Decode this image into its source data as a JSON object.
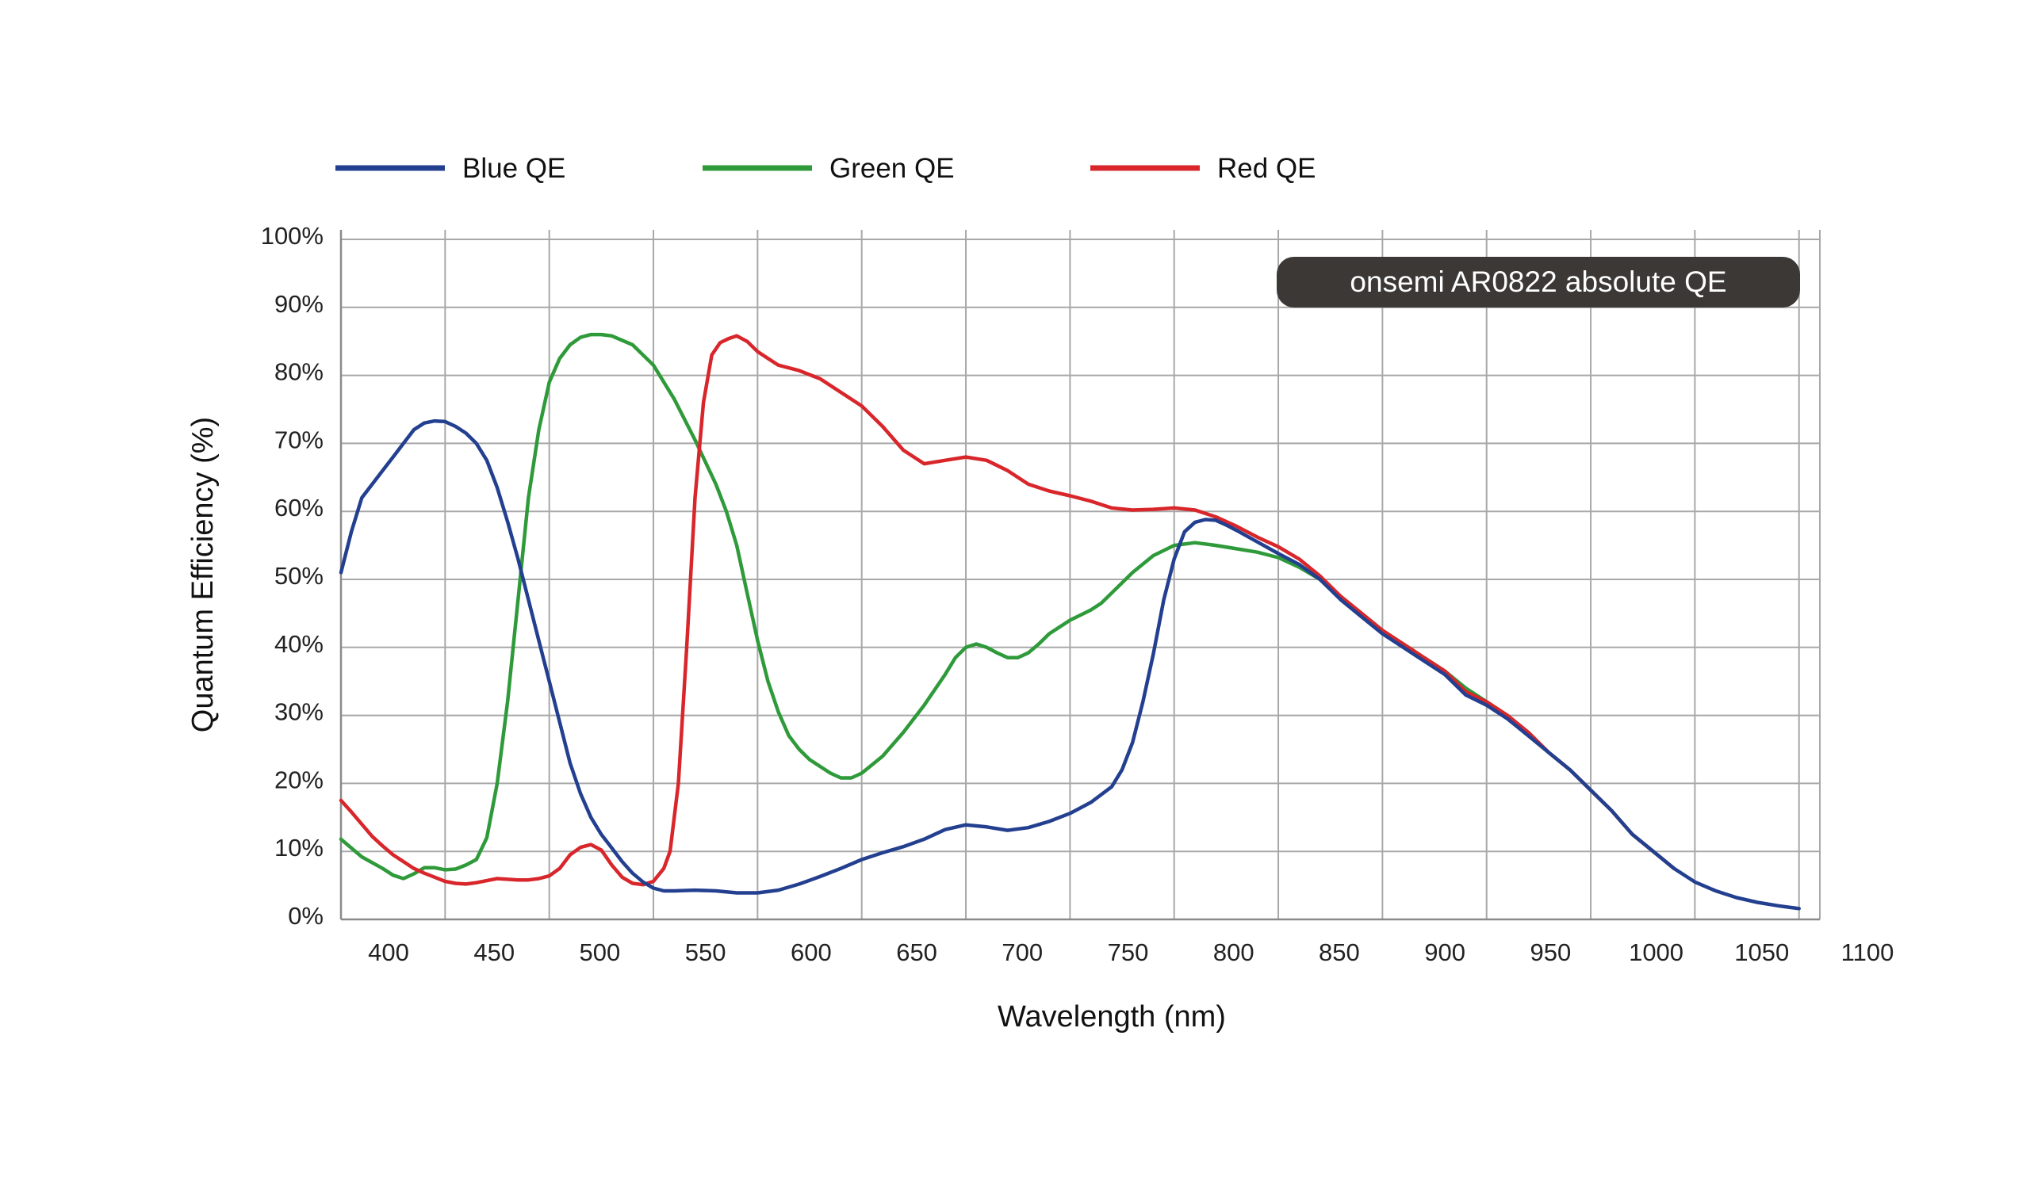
{
  "chart_data": {
    "type": "line",
    "title": "",
    "xlabel": "Wavelength (nm)",
    "ylabel": "Quantum Efficiency (%)",
    "xlim": [
      390,
      1100
    ],
    "ylim": [
      0,
      100
    ],
    "x_ticks": [
      "400",
      "450",
      "500",
      "550",
      "600",
      "650",
      "700",
      "750",
      "800",
      "850",
      "900",
      "950",
      "1000",
      "1050",
      "1100"
    ],
    "y_ticks": [
      "0%",
      "10%",
      "20%",
      "30%",
      "40%",
      "50%",
      "60%",
      "70%",
      "80%",
      "90%",
      "100%"
    ],
    "grid": true,
    "legend_position": "top-left",
    "annotation": "onsemi AR0822 absolute QE",
    "annotation_position": "top-right",
    "series": [
      {
        "name": "Blue QE",
        "color": "#233f8f",
        "points": [
          [
            390,
            51
          ],
          [
            395,
            57
          ],
          [
            400,
            62
          ],
          [
            405,
            64
          ],
          [
            410,
            66
          ],
          [
            415,
            68
          ],
          [
            420,
            70
          ],
          [
            425,
            72
          ],
          [
            430,
            73
          ],
          [
            435,
            73.3
          ],
          [
            440,
            73.2
          ],
          [
            445,
            72.5
          ],
          [
            450,
            71.5
          ],
          [
            455,
            70
          ],
          [
            460,
            67.5
          ],
          [
            465,
            63.5
          ],
          [
            470,
            58.5
          ],
          [
            475,
            53
          ],
          [
            480,
            47
          ],
          [
            485,
            41
          ],
          [
            490,
            35
          ],
          [
            495,
            29
          ],
          [
            500,
            23
          ],
          [
            505,
            18.5
          ],
          [
            510,
            15
          ],
          [
            515,
            12.5
          ],
          [
            520,
            10.5
          ],
          [
            525,
            8.5
          ],
          [
            530,
            6.8
          ],
          [
            535,
            5.5
          ],
          [
            540,
            4.6
          ],
          [
            545,
            4.2
          ],
          [
            550,
            4.2
          ],
          [
            560,
            4.3
          ],
          [
            570,
            4.2
          ],
          [
            580,
            3.9
          ],
          [
            590,
            3.9
          ],
          [
            600,
            4.3
          ],
          [
            610,
            5.2
          ],
          [
            620,
            6.3
          ],
          [
            630,
            7.5
          ],
          [
            640,
            8.8
          ],
          [
            650,
            9.8
          ],
          [
            660,
            10.7
          ],
          [
            670,
            11.8
          ],
          [
            680,
            13.2
          ],
          [
            690,
            13.9
          ],
          [
            700,
            13.6
          ],
          [
            710,
            13.1
          ],
          [
            720,
            13.5
          ],
          [
            730,
            14.4
          ],
          [
            740,
            15.6
          ],
          [
            750,
            17.2
          ],
          [
            760,
            19.5
          ],
          [
            765,
            22
          ],
          [
            770,
            26
          ],
          [
            775,
            32
          ],
          [
            780,
            39
          ],
          [
            785,
            47
          ],
          [
            790,
            53
          ],
          [
            795,
            57
          ],
          [
            800,
            58.4
          ],
          [
            805,
            58.8
          ],
          [
            810,
            58.7
          ],
          [
            815,
            58
          ],
          [
            820,
            57.2
          ],
          [
            830,
            55.5
          ],
          [
            840,
            53.8
          ],
          [
            850,
            52.2
          ],
          [
            860,
            50
          ],
          [
            870,
            47
          ],
          [
            880,
            44.5
          ],
          [
            890,
            42
          ],
          [
            900,
            40
          ],
          [
            910,
            38
          ],
          [
            920,
            36
          ],
          [
            930,
            33
          ],
          [
            940,
            31.5
          ],
          [
            950,
            29.5
          ],
          [
            960,
            27
          ],
          [
            970,
            24.5
          ],
          [
            980,
            22
          ],
          [
            990,
            19
          ],
          [
            1000,
            16
          ],
          [
            1010,
            12.5
          ],
          [
            1020,
            10
          ],
          [
            1030,
            7.5
          ],
          [
            1040,
            5.5
          ],
          [
            1050,
            4.2
          ],
          [
            1060,
            3.2
          ],
          [
            1070,
            2.5
          ],
          [
            1080,
            2
          ],
          [
            1085,
            1.8
          ],
          [
            1090,
            1.6
          ]
        ]
      },
      {
        "name": "Green QE",
        "color": "#2f9a3a",
        "points": [
          [
            390,
            11.8
          ],
          [
            400,
            9.2
          ],
          [
            410,
            7.5
          ],
          [
            415,
            6.5
          ],
          [
            420,
            6
          ],
          [
            425,
            6.7
          ],
          [
            430,
            7.6
          ],
          [
            435,
            7.6
          ],
          [
            440,
            7.3
          ],
          [
            445,
            7.4
          ],
          [
            450,
            8
          ],
          [
            455,
            8.8
          ],
          [
            460,
            12
          ],
          [
            465,
            20
          ],
          [
            470,
            32
          ],
          [
            475,
            47
          ],
          [
            480,
            62
          ],
          [
            485,
            72
          ],
          [
            490,
            79
          ],
          [
            495,
            82.5
          ],
          [
            500,
            84.5
          ],
          [
            505,
            85.6
          ],
          [
            510,
            86
          ],
          [
            515,
            86
          ],
          [
            520,
            85.8
          ],
          [
            530,
            84.5
          ],
          [
            540,
            81.5
          ],
          [
            550,
            76.5
          ],
          [
            560,
            70.5
          ],
          [
            570,
            64
          ],
          [
            575,
            60
          ],
          [
            580,
            55
          ],
          [
            585,
            48
          ],
          [
            590,
            41
          ],
          [
            595,
            35
          ],
          [
            600,
            30.5
          ],
          [
            605,
            27
          ],
          [
            610,
            25
          ],
          [
            615,
            23.5
          ],
          [
            620,
            22.5
          ],
          [
            625,
            21.5
          ],
          [
            630,
            20.8
          ],
          [
            635,
            20.8
          ],
          [
            640,
            21.5
          ],
          [
            650,
            24
          ],
          [
            660,
            27.5
          ],
          [
            670,
            31.5
          ],
          [
            680,
            36
          ],
          [
            685,
            38.5
          ],
          [
            690,
            40
          ],
          [
            695,
            40.5
          ],
          [
            700,
            40
          ],
          [
            705,
            39.2
          ],
          [
            710,
            38.5
          ],
          [
            715,
            38.5
          ],
          [
            720,
            39.2
          ],
          [
            725,
            40.5
          ],
          [
            730,
            42
          ],
          [
            740,
            44
          ],
          [
            750,
            45.5
          ],
          [
            755,
            46.5
          ],
          [
            760,
            48
          ],
          [
            770,
            51
          ],
          [
            780,
            53.5
          ],
          [
            790,
            55
          ],
          [
            800,
            55.4
          ],
          [
            810,
            55
          ],
          [
            820,
            54.5
          ],
          [
            830,
            54
          ],
          [
            840,
            53.2
          ],
          [
            850,
            51.8
          ],
          [
            860,
            50
          ],
          [
            870,
            47.5
          ],
          [
            880,
            45
          ],
          [
            890,
            42.5
          ],
          [
            900,
            40.5
          ],
          [
            910,
            38.5
          ],
          [
            920,
            36.5
          ],
          [
            930,
            34
          ],
          [
            940,
            32
          ],
          [
            950,
            30
          ],
          [
            960,
            27.5
          ],
          [
            970,
            24.5
          ],
          [
            980,
            22
          ],
          [
            990,
            19
          ],
          [
            1000,
            16
          ],
          [
            1010,
            12.5
          ],
          [
            1020,
            10
          ],
          [
            1030,
            7.5
          ]
        ]
      },
      {
        "name": "Red QE",
        "color": "#d8262b",
        "points": [
          [
            390,
            17.5
          ],
          [
            395,
            15.8
          ],
          [
            400,
            14
          ],
          [
            405,
            12.2
          ],
          [
            410,
            10.8
          ],
          [
            415,
            9.5
          ],
          [
            420,
            8.5
          ],
          [
            425,
            7.5
          ],
          [
            430,
            6.8
          ],
          [
            435,
            6.2
          ],
          [
            440,
            5.6
          ],
          [
            445,
            5.3
          ],
          [
            450,
            5.2
          ],
          [
            455,
            5.4
          ],
          [
            460,
            5.7
          ],
          [
            465,
            6
          ],
          [
            470,
            5.9
          ],
          [
            475,
            5.8
          ],
          [
            480,
            5.8
          ],
          [
            485,
            6
          ],
          [
            490,
            6.4
          ],
          [
            495,
            7.5
          ],
          [
            500,
            9.5
          ],
          [
            505,
            10.6
          ],
          [
            510,
            11
          ],
          [
            515,
            10.2
          ],
          [
            520,
            8
          ],
          [
            525,
            6.2
          ],
          [
            530,
            5.3
          ],
          [
            535,
            5.1
          ],
          [
            540,
            5.6
          ],
          [
            545,
            7.5
          ],
          [
            548,
            10
          ],
          [
            552,
            20
          ],
          [
            556,
            40
          ],
          [
            560,
            62
          ],
          [
            564,
            76
          ],
          [
            568,
            83
          ],
          [
            572,
            84.8
          ],
          [
            576,
            85.4
          ],
          [
            580,
            85.8
          ],
          [
            585,
            85
          ],
          [
            590,
            83.5
          ],
          [
            595,
            82.5
          ],
          [
            600,
            81.5
          ],
          [
            610,
            80.7
          ],
          [
            620,
            79.5
          ],
          [
            630,
            77.5
          ],
          [
            640,
            75.5
          ],
          [
            650,
            72.5
          ],
          [
            660,
            69
          ],
          [
            670,
            67
          ],
          [
            680,
            67.5
          ],
          [
            690,
            68
          ],
          [
            700,
            67.5
          ],
          [
            710,
            66
          ],
          [
            720,
            64
          ],
          [
            730,
            63
          ],
          [
            740,
            62.3
          ],
          [
            750,
            61.5
          ],
          [
            760,
            60.5
          ],
          [
            770,
            60.2
          ],
          [
            780,
            60.3
          ],
          [
            790,
            60.5
          ],
          [
            800,
            60.2
          ],
          [
            810,
            59.2
          ],
          [
            820,
            57.8
          ],
          [
            830,
            56.2
          ],
          [
            840,
            54.8
          ],
          [
            850,
            53
          ],
          [
            860,
            50.5
          ],
          [
            870,
            47.5
          ],
          [
            880,
            45
          ],
          [
            890,
            42.5
          ],
          [
            900,
            40.5
          ],
          [
            910,
            38.5
          ],
          [
            920,
            36.5
          ],
          [
            930,
            33.5
          ],
          [
            940,
            32
          ],
          [
            950,
            30
          ],
          [
            960,
            27.5
          ],
          [
            970,
            24.5
          ],
          [
            980,
            22
          ],
          [
            990,
            19
          ],
          [
            1000,
            16
          ],
          [
            1010,
            12.5
          ],
          [
            1020,
            10
          ],
          [
            1030,
            7.5
          ]
        ]
      }
    ]
  }
}
